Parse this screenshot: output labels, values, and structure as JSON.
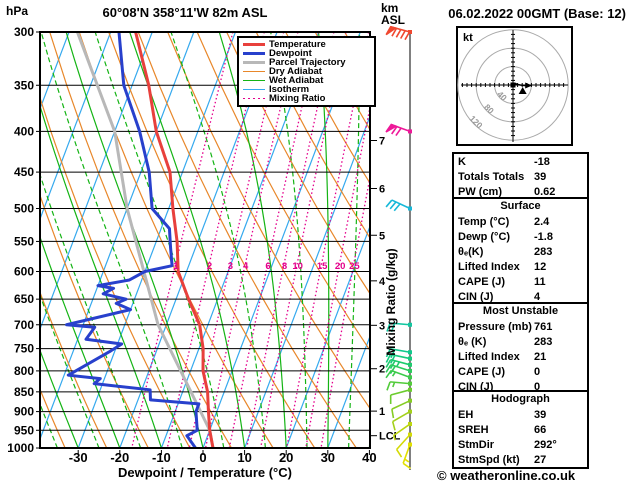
{
  "header": {
    "pressure_unit": "hPa",
    "title": "60°08'N 358°11'W 82m ASL",
    "altitude_unit_line1": "km",
    "altitude_unit_line2": "ASL",
    "datetime": "06.02.2022 00GMT (Base: 12)"
  },
  "footer": {
    "copyright": "© weatheronline.co.uk"
  },
  "chart_data": {
    "type": "line",
    "variant": "skew-t-log-p sounding",
    "x_axis": {
      "label": "Dewpoint / Temperature (°C)",
      "ticks": [
        -30,
        -20,
        -10,
        0,
        10,
        20,
        30,
        40
      ],
      "range": [
        -40,
        41
      ]
    },
    "y_axis": {
      "unit": "hPa",
      "scale": "log",
      "ticks": [
        300,
        350,
        400,
        450,
        500,
        550,
        600,
        650,
        700,
        750,
        800,
        850,
        900,
        950,
        1000
      ]
    },
    "km_axis": {
      "unit": "km ASL",
      "ticks": [
        1,
        2,
        3,
        4,
        5,
        6,
        7
      ],
      "lcl_label": "LCL",
      "lcl_pressure": 965
    },
    "mixing_ratio_axis_label": "Mixing Ratio (g/kg)",
    "mixing_ratio_labels": [
      1,
      2,
      3,
      4,
      6,
      8,
      10,
      15,
      20,
      25
    ],
    "legend": [
      {
        "label": "Temperature",
        "color": "#e8403c",
        "width": 3,
        "dash": ""
      },
      {
        "label": "Dewpoint",
        "color": "#2840cc",
        "width": 3,
        "dash": ""
      },
      {
        "label": "Parcel Trajectory",
        "color": "#b8b8b8",
        "width": 3,
        "dash": ""
      },
      {
        "label": "Dry Adiabat",
        "color": "#e8872a",
        "width": 1.2,
        "dash": ""
      },
      {
        "label": "Wet Adiabat",
        "color": "#14b414",
        "width": 1.2,
        "dash": ""
      },
      {
        "label": "Isotherm",
        "color": "#35a9ee",
        "width": 1.2,
        "dash": ""
      },
      {
        "label": "Mixing Ratio",
        "color": "#e4008c",
        "width": 1.3,
        "dash": "1.5,2.5"
      }
    ],
    "series": {
      "temperature_p_degC": [
        [
          300,
          -54
        ],
        [
          350,
          -46
        ],
        [
          400,
          -40
        ],
        [
          450,
          -33
        ],
        [
          500,
          -29
        ],
        [
          550,
          -25
        ],
        [
          600,
          -22
        ],
        [
          650,
          -17
        ],
        [
          700,
          -12
        ],
        [
          750,
          -9
        ],
        [
          800,
          -7
        ],
        [
          850,
          -4
        ],
        [
          900,
          -2
        ],
        [
          950,
          0
        ],
        [
          1000,
          2.4
        ]
      ],
      "dewpoint_p_degC": [
        [
          300,
          -58
        ],
        [
          350,
          -52
        ],
        [
          400,
          -44
        ],
        [
          450,
          -38
        ],
        [
          500,
          -34
        ],
        [
          530,
          -28
        ],
        [
          560,
          -26
        ],
        [
          590,
          -24
        ],
        [
          600,
          -30
        ],
        [
          615,
          -33
        ],
        [
          625,
          -40
        ],
        [
          630,
          -36
        ],
        [
          640,
          -38
        ],
        [
          650,
          -32
        ],
        [
          658,
          -34
        ],
        [
          670,
          -30
        ],
        [
          700,
          -44
        ],
        [
          705,
          -37
        ],
        [
          730,
          -38
        ],
        [
          740,
          -29
        ],
        [
          755,
          -31
        ],
        [
          810,
          -39
        ],
        [
          818,
          -31
        ],
        [
          830,
          -32
        ],
        [
          845,
          -18
        ],
        [
          870,
          -17
        ],
        [
          880,
          -5
        ],
        [
          900,
          -5
        ],
        [
          950,
          -3
        ],
        [
          965,
          -5
        ],
        [
          1000,
          -1.8
        ]
      ],
      "parcel_p_degC": [
        [
          300,
          -68
        ],
        [
          400,
          -50
        ],
        [
          500,
          -40
        ],
        [
          700,
          -22
        ],
        [
          850,
          -8
        ],
        [
          950,
          0
        ],
        [
          1000,
          2.4
        ]
      ]
    },
    "wind_barbs": [
      {
        "p": 300,
        "color": "#f04830",
        "pennant": 1,
        "full": 4,
        "half": 0,
        "angle": 165
      },
      {
        "p": 400,
        "color": "#ee1899",
        "pennant": 1,
        "full": 2,
        "half": 0,
        "angle": 160
      },
      {
        "p": 500,
        "color": "#17b8d8",
        "pennant": 0,
        "full": 3,
        "half": 0,
        "angle": 155
      },
      {
        "p": 700,
        "color": "#12c6a0",
        "pennant": 0,
        "full": 2,
        "half": 0,
        "angle": 175
      },
      {
        "p": 758,
        "color": "#10c98c",
        "pennant": 0,
        "full": 2,
        "half": 0,
        "angle": 170
      },
      {
        "p": 772,
        "color": "#16cb7e",
        "pennant": 0,
        "full": 2,
        "half": 0,
        "angle": 168
      },
      {
        "p": 786,
        "color": "#1ecb6e",
        "pennant": 0,
        "full": 2,
        "half": 1,
        "angle": 165
      },
      {
        "p": 800,
        "color": "#2bcb5c",
        "pennant": 0,
        "full": 2,
        "half": 0,
        "angle": 162
      },
      {
        "p": 815,
        "color": "#3ccb4b",
        "pennant": 0,
        "full": 1,
        "half": 1,
        "angle": 160
      },
      {
        "p": 830,
        "color": "#52cb3a",
        "pennant": 0,
        "full": 1,
        "half": 1,
        "angle": 175
      },
      {
        "p": 845,
        "color": "#6ccc2e",
        "pennant": 0,
        "full": 1,
        "half": 0,
        "angle": 195
      },
      {
        "p": 872,
        "color": "#86cc24",
        "pennant": 0,
        "full": 1,
        "half": 0,
        "angle": 205
      },
      {
        "p": 900,
        "color": "#a3d01b",
        "pennant": 0,
        "full": 1,
        "half": 0,
        "angle": 210
      },
      {
        "p": 933,
        "color": "#bdd60e",
        "pennant": 0,
        "full": 0,
        "half": 1,
        "angle": 215
      },
      {
        "p": 962,
        "color": "#d4da06",
        "pennant": 0,
        "full": 1,
        "half": 0,
        "angle": 228
      },
      {
        "p": 990,
        "color": "#e2e000",
        "pennant": 0,
        "full": 1,
        "half": 1,
        "angle": 250
      }
    ],
    "hodograph": {
      "unit_label": "kt",
      "rings_kt": [
        40,
        80,
        120
      ],
      "trace_kt": [
        [
          2,
          2
        ],
        [
          6,
          3
        ],
        [
          10,
          1
        ],
        [
          16,
          0
        ],
        [
          24,
          -1
        ],
        [
          33,
          -1
        ]
      ],
      "triangle_marker_kt": [
        21,
        -13
      ],
      "square_marker_kt": [
        0,
        0
      ]
    }
  },
  "stats": {
    "indices": {
      "rows": [
        [
          "K",
          "-18"
        ],
        [
          "Totals Totals",
          "39"
        ],
        [
          "PW (cm)",
          "0.62"
        ]
      ]
    },
    "surface": {
      "title": "Surface",
      "rows": [
        [
          "Temp (°C)",
          "2.4"
        ],
        [
          "Dewp (°C)",
          "-1.8"
        ],
        [
          "θₑ(K)",
          "283"
        ],
        [
          "Lifted Index",
          "12"
        ],
        [
          "CAPE (J)",
          "11"
        ],
        [
          "CIN (J)",
          "4"
        ]
      ]
    },
    "most_unstable": {
      "title": "Most Unstable",
      "rows": [
        [
          "Pressure (mb)",
          "761"
        ],
        [
          "θₑ (K)",
          "283"
        ],
        [
          "Lifted Index",
          "21"
        ],
        [
          "CAPE (J)",
          "0"
        ],
        [
          "CIN (J)",
          "0"
        ]
      ]
    },
    "hodograph": {
      "title": "Hodograph",
      "rows": [
        [
          "EH",
          "39"
        ],
        [
          "SREH",
          "66"
        ],
        [
          "StmDir",
          "292°"
        ],
        [
          "StmSpd (kt)",
          "27"
        ]
      ]
    }
  }
}
